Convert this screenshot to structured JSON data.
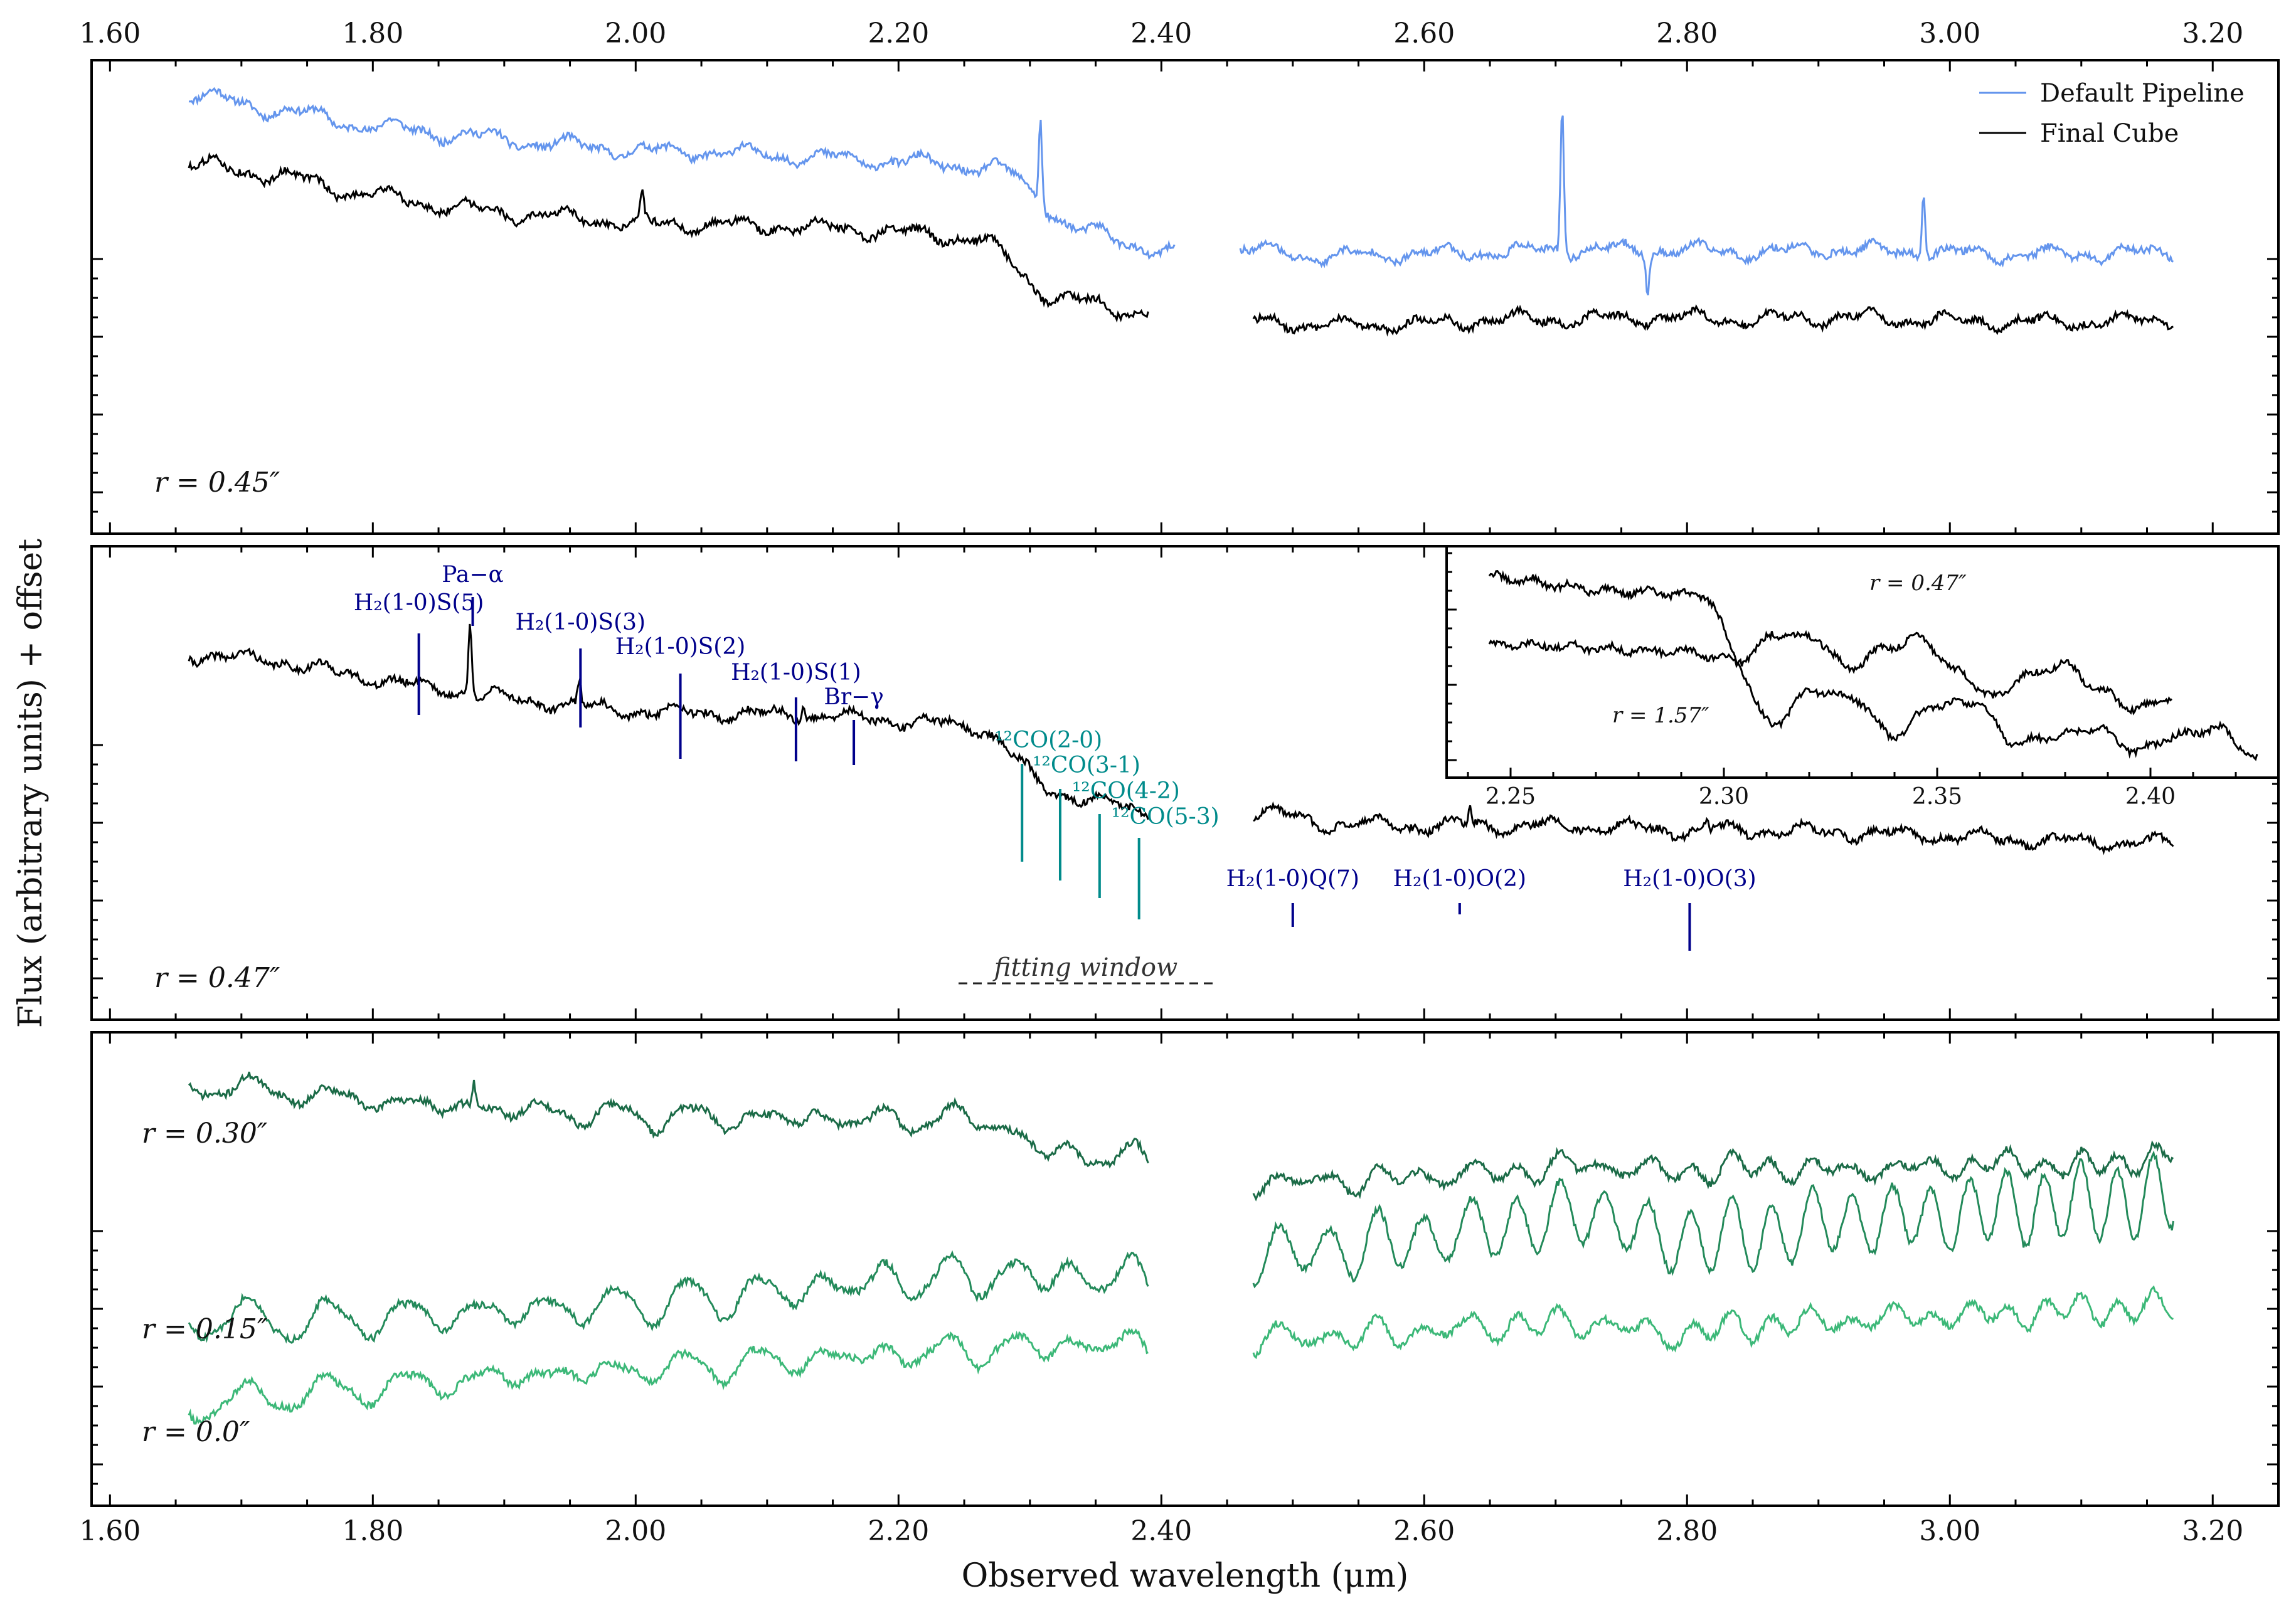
{
  "chart_data": {
    "type": "line",
    "xlabel": "Observed wavelength (μm)",
    "ylabel": "Flux (arbitrary units) + offset",
    "xlim": [
      1.586,
      3.25
    ],
    "xticks": [
      "1.60",
      "1.80",
      "2.00",
      "2.20",
      "2.40",
      "2.60",
      "2.80",
      "3.00",
      "3.20"
    ],
    "colors": {
      "default_pipeline": "#6495ed",
      "final_cube": "#000000",
      "h2_lines": "#00008b",
      "co_lines": "#008b8b",
      "r030": "#1b6b47",
      "r015": "#238a5a",
      "r00": "#3cb878"
    },
    "panels": [
      {
        "id": "top",
        "r_label": "r = 0.45″",
        "legend": [
          {
            "label": "Default Pipeline",
            "color": "#6495ed"
          },
          {
            "label": "Final Cube",
            "color": "#000000"
          }
        ],
        "series": [
          {
            "name": "Default Pipeline",
            "color": "#6495ed",
            "segments": [
              {
                "x0": 1.66,
                "x1": 2.41,
                "y": [
                  9.75,
                  9.4,
                  9.05,
                  8.85,
                  8.65,
                  8.5,
                  8.45,
                  8.35,
                  8.25,
                  8.1,
                  6.7,
                  6.2
                ]
              },
              {
                "x0": 2.46,
                "x1": 3.17,
                "y": [
                  6.3,
                  6.15,
                  6.2,
                  6.25,
                  6.3,
                  6.3,
                  6.25,
                  6.3,
                  6.25,
                  6.2,
                  6.2,
                  6.25
                ]
              }
            ],
            "spikes": [
              {
                "x": 2.308,
                "dy": 1.9
              },
              {
                "x": 2.705,
                "dy": 3.2
              },
              {
                "x": 2.77,
                "dy": -0.9
              },
              {
                "x": 2.98,
                "dy": 1.4
              }
            ]
          },
          {
            "name": "Final Cube",
            "color": "#000000",
            "segments": [
              {
                "x0": 1.66,
                "x1": 2.39,
                "y": [
                  8.2,
                  7.95,
                  7.55,
                  7.25,
                  7.05,
                  6.9,
                  6.85,
                  6.8,
                  6.7,
                  6.55,
                  5.2,
                  4.9
                ]
              },
              {
                "x0": 2.47,
                "x1": 3.17,
                "y": [
                  4.7,
                  4.6,
                  4.65,
                  4.75,
                  4.75,
                  4.8,
                  4.75,
                  4.8,
                  4.75,
                  4.7,
                  4.7,
                  4.75
                ]
              }
            ],
            "spikes": [
              {
                "x": 2.005,
                "dy": 0.6
              }
            ]
          }
        ]
      },
      {
        "id": "middle",
        "r_label": "r = 0.47″",
        "fitting_window": {
          "x0": 2.24,
          "x1": 2.44,
          "label": "fitting window"
        },
        "series": [
          {
            "name": "Final Cube",
            "color": "#000000",
            "segments": [
              {
                "x0": 1.66,
                "x1": 2.39,
                "y": [
                  8.1,
                  7.95,
                  7.6,
                  7.3,
                  7.05,
                  6.85,
                  6.8,
                  6.75,
                  6.65,
                  6.5,
                  5.0,
                  4.6
                ]
              },
              {
                "x0": 2.47,
                "x1": 3.17,
                "y": [
                  4.6,
                  4.35,
                  4.3,
                  4.3,
                  4.3,
                  4.2,
                  4.2,
                  4.15,
                  4.1,
                  4.0,
                  3.95,
                  3.9
                ]
              }
            ],
            "spikes": [
              {
                "x": 1.874,
                "dy": 1.6
              },
              {
                "x": 1.957,
                "dy": 0.55
              },
              {
                "x": 2.128,
                "dy": 0.35
              },
              {
                "x": 2.635,
                "dy": 0.35
              },
              {
                "x": 2.815,
                "dy": 0.15
              }
            ]
          }
        ],
        "line_labels": [
          {
            "text": "H₂(1-0)S(5)",
            "x": 1.835,
            "color": "#00008b"
          },
          {
            "text": "Pa−α",
            "x": 1.876,
            "color": "#00008b"
          },
          {
            "text": "H₂(1-0)S(3)",
            "x": 1.958,
            "color": "#00008b"
          },
          {
            "text": "H₂(1-0)S(2)",
            "x": 2.034,
            "color": "#00008b"
          },
          {
            "text": "H₂(1-0)S(1)",
            "x": 2.122,
            "color": "#00008b"
          },
          {
            "text": "Br−γ",
            "x": 2.166,
            "color": "#00008b"
          },
          {
            "text": "¹²CO(2-0)",
            "x": 2.294,
            "color": "#008b8b"
          },
          {
            "text": "¹²CO(3-1)",
            "x": 2.323,
            "color": "#008b8b"
          },
          {
            "text": "¹²CO(4-2)",
            "x": 2.353,
            "color": "#008b8b"
          },
          {
            "text": "¹²CO(5-3)",
            "x": 2.383,
            "color": "#008b8b"
          },
          {
            "text": "H₂(1-0)Q(7)",
            "x": 2.5,
            "color": "#00008b"
          },
          {
            "text": "H₂(1-0)O(2)",
            "x": 2.627,
            "color": "#00008b"
          },
          {
            "text": "H₂(1-0)O(3)",
            "x": 2.802,
            "color": "#00008b"
          }
        ],
        "inset": {
          "xlim": [
            2.235,
            2.43
          ],
          "xticks": [
            "2.25",
            "2.30",
            "2.35",
            "2.40"
          ],
          "series": [
            {
              "name": "r = 0.47″",
              "label": "r = 0.47″",
              "x0": 2.245,
              "x1": 2.405,
              "y": [
                8.8,
                8.7,
                8.55,
                8.45,
                8.4,
                8.35,
                8.3,
                6.6,
                7.3,
                7.2,
                6.4,
                6.9,
                7.2,
                6.3,
                5.6,
                6.2,
                6.5,
                5.8,
                5.3,
                5.6
              ]
            },
            {
              "name": "r = 1.57″",
              "label": "r = 1.57″",
              "x0": 2.245,
              "x1": 2.425,
              "y": [
                7.0,
                7.0,
                6.95,
                6.9,
                6.85,
                6.8,
                6.6,
                4.9,
                5.8,
                5.6,
                4.6,
                5.4,
                5.5,
                4.4,
                4.6,
                4.8,
                4.2,
                4.6,
                4.8,
                4.0
              ]
            }
          ]
        }
      },
      {
        "id": "bottom",
        "series": [
          {
            "name": "r = 0.30″",
            "label": "r = 0.30″",
            "color": "#1b6b47",
            "segments": [
              {
                "x0": 1.66,
                "x1": 2.39,
                "y": [
                  9.35,
                  9.2,
                  9.0,
                  8.85,
                  8.75,
                  8.65,
                  8.6,
                  8.6,
                  8.55,
                  8.6,
                  7.8,
                  7.7
                ]
              },
              {
                "x0": 2.47,
                "x1": 3.17,
                "y": [
                  7.2,
                  7.2,
                  7.3,
                  7.4,
                  7.55,
                  7.4,
                  7.5,
                  7.45,
                  7.5,
                  7.6,
                  7.55,
                  7.8
                ]
              }
            ],
            "spikes": [
              {
                "x": 1.877,
                "dy": 0.55
              }
            ]
          },
          {
            "name": "r = 0.15″",
            "label": "r = 0.15″",
            "color": "#238a5a",
            "segments": [
              {
                "x0": 1.66,
                "x1": 2.39,
                "y": [
                  4.2,
                  4.1,
                  4.15,
                  4.25,
                  4.35,
                  4.45,
                  4.6,
                  4.8,
                  5.0,
                  5.1,
                  5.1,
                  5.05
                ]
              },
              {
                "x0": 2.47,
                "x1": 3.17,
                "y": [
                  5.6,
                  5.7,
                  5.95,
                  6.2,
                  6.5,
                  5.9,
                  6.0,
                  6.3,
                  6.4,
                  6.6,
                  6.7,
                  6.9
                ]
              }
            ],
            "spikes": []
          },
          {
            "name": "r = 0.0″",
            "label": "r = 0.0″",
            "color": "#3cb878",
            "segments": [
              {
                "x0": 1.66,
                "x1": 2.39,
                "y": [
                  2.2,
                  2.45,
                  2.6,
                  2.75,
                  2.9,
                  3.0,
                  3.1,
                  3.25,
                  3.35,
                  3.45,
                  3.55,
                  3.6
                ]
              },
              {
                "x0": 2.47,
                "x1": 3.17,
                "y": [
                  3.7,
                  3.75,
                  3.85,
                  4.0,
                  4.05,
                  3.8,
                  4.0,
                  4.1,
                  4.2,
                  4.25,
                  4.35,
                  4.4
                ]
              }
            ],
            "spikes": []
          }
        ]
      }
    ]
  }
}
